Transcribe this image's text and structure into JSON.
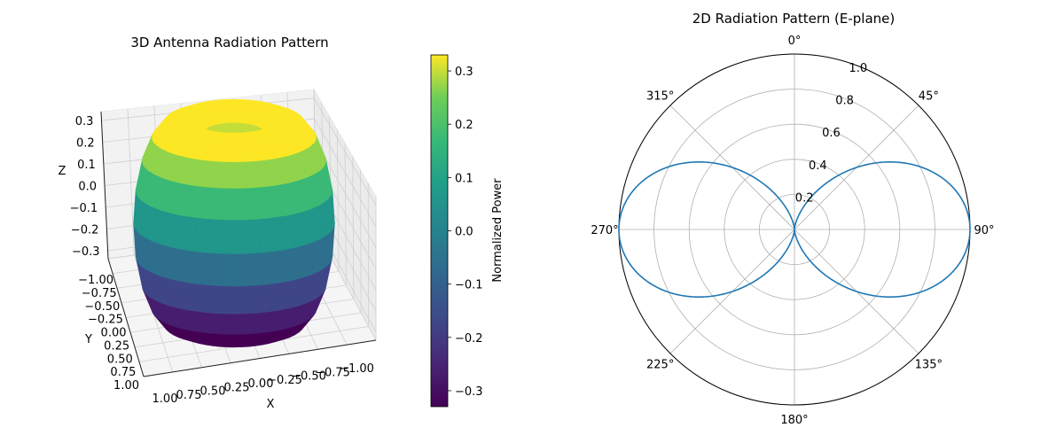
{
  "chart_data": [
    {
      "type": "surface3d",
      "title": "3D Antenna Radiation Pattern",
      "xlabel": "X",
      "ylabel": "Y",
      "zlabel": "Z",
      "x_ticks": [
        "1.00",
        "0.75",
        "0.50",
        "0.25",
        "0.00",
        "−0.25",
        "−0.50",
        "−0.75",
        "−1.00"
      ],
      "y_ticks": [
        "−1.00",
        "−0.75",
        "−0.50",
        "−0.25",
        "0.00",
        "0.25",
        "0.50",
        "0.75",
        "1.00"
      ],
      "z_ticks": [
        "0.3",
        "0.2",
        "0.1",
        "0.0",
        "−0.1",
        "−0.2",
        "−0.3"
      ],
      "pattern": "sin(theta)^2 toroid",
      "colormap": "viridis",
      "colorbar": {
        "label": "Normalized Power",
        "ticks": [
          0.3,
          0.2,
          0.1,
          0.0,
          -0.1,
          -0.2,
          -0.3
        ],
        "tick_labels": [
          "0.3",
          "0.2",
          "0.1",
          "0.0",
          "−0.1",
          "−0.2",
          "−0.3"
        ],
        "range": [
          -0.33,
          0.33
        ]
      }
    },
    {
      "type": "polar",
      "title": "2D Radiation Pattern (E-plane)",
      "function": "sin(theta)^2",
      "r_range": [
        0,
        1.0
      ],
      "r_ticks": [
        0.2,
        0.4,
        0.6,
        0.8,
        1.0
      ],
      "r_tick_labels": [
        "0.2",
        "0.4",
        "0.6",
        "0.8",
        "1.0"
      ],
      "theta_ticks": [
        0,
        45,
        90,
        135,
        180,
        225,
        270,
        315
      ],
      "theta_tick_labels": [
        "0°",
        "45°",
        "90°",
        "135°",
        "180°",
        "225°",
        "270°",
        "315°"
      ],
      "theta_zero": "N",
      "theta_direction": "clockwise",
      "line_color": "#1f77b4",
      "grid": true
    }
  ]
}
